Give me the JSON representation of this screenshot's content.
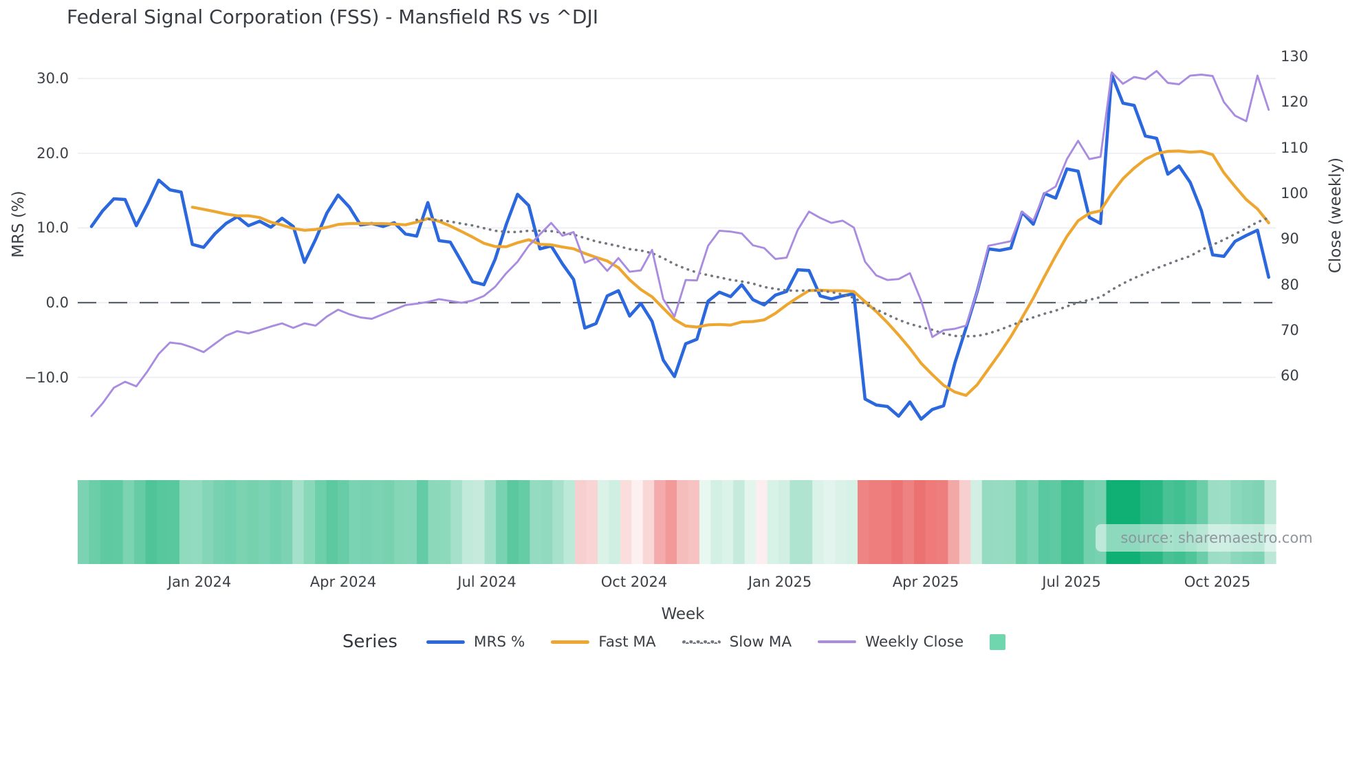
{
  "title": "Federal Signal Corporation (FSS) - Mansfield RS vs ^DJI",
  "source_note": "source: sharemaestro.com",
  "axes": {
    "left": {
      "label": "MRS (%)",
      "ticks": [
        "30.0",
        "20.0",
        "10.0",
        "0.0",
        "−10.0"
      ],
      "tick_values": [
        30,
        20,
        10,
        0,
        -10
      ]
    },
    "right": {
      "label": "Close (weekly)",
      "ticks": [
        "130",
        "120",
        "110",
        "100",
        "90",
        "80",
        "70",
        "60"
      ],
      "tick_values": [
        130,
        120,
        110,
        100,
        90,
        80,
        70,
        60
      ]
    },
    "x": {
      "label": "Week",
      "ticks": [
        "Jan 2024",
        "Apr 2024",
        "Jul 2024",
        "Oct 2024",
        "Jan 2025",
        "Apr 2025",
        "Jul 2025",
        "Oct 2025"
      ]
    }
  },
  "legend": {
    "title": "Series",
    "items": [
      {
        "label": "MRS %",
        "swatch": "line",
        "color": "#2b67dd"
      },
      {
        "label": "Fast MA",
        "swatch": "line",
        "color": "#eda62f"
      },
      {
        "label": "Slow MA",
        "swatch": "dotted",
        "color": "#72767e"
      },
      {
        "label": "Weekly Close",
        "swatch": "line",
        "color": "#a98ce0"
      },
      {
        "label": "",
        "swatch": "square",
        "color": "#6fd6ae"
      }
    ]
  },
  "colors": {
    "mrs": "#2b67dd",
    "fast_ma": "#eda62f",
    "slow_ma": "#72767e",
    "weekly_close": "#a98ce0",
    "zero_line": "#5c6068",
    "grid": "#eceef3",
    "heat_positive": "#10b075",
    "heat_negative": "#ec6e6e",
    "text": "#3b4046",
    "muted_text": "#8f959d"
  },
  "chart_data": {
    "type": "line",
    "x_unit": "week",
    "n_weeks": 106,
    "x_span_note": "weekly points from late Oct 2023 to mid Nov 2025",
    "x_tick_labels": [
      "Jan 2024",
      "Apr 2024",
      "Jul 2024",
      "Oct 2024",
      "Jan 2025",
      "Apr 2025",
      "Jul 2025",
      "Oct 2025"
    ],
    "x_tick_week_index": [
      9.63,
      22.6,
      35.57,
      48.54,
      61.51,
      74.48,
      87.45,
      100.42
    ],
    "left_axis": {
      "label": "MRS (%)",
      "ticks": [
        30,
        20,
        10,
        0,
        -10
      ],
      "zero_line_dashed": true
    },
    "right_axis": {
      "label": "Close (weekly)",
      "ticks": [
        130,
        120,
        110,
        100,
        90,
        80,
        70,
        60
      ]
    },
    "grid": true,
    "legend_position": "bottom-center",
    "series": [
      {
        "name": "MRS %",
        "axis": "left",
        "style": "solid",
        "color": "#2b67dd",
        "values": [
          10.2,
          12.3,
          13.9,
          13.8,
          10.3,
          13.2,
          16.4,
          15.1,
          14.8,
          7.8,
          7.4,
          9.2,
          10.6,
          11.5,
          10.3,
          10.9,
          10.1,
          11.3,
          10.2,
          5.4,
          8.5,
          12.0,
          14.4,
          12.8,
          10.4,
          10.6,
          10.2,
          10.7,
          9.2,
          8.9,
          13.4,
          8.3,
          8.1,
          5.5,
          2.8,
          2.4,
          5.8,
          10.5,
          14.5,
          13.0,
          7.2,
          7.6,
          5.2,
          3.1,
          -3.4,
          -2.8,
          0.9,
          1.6,
          -1.8,
          -0.1,
          -2.5,
          -7.7,
          -9.9,
          -5.5,
          -4.9,
          0.2,
          1.4,
          0.8,
          2.4,
          0.4,
          -0.3,
          1.0,
          1.5,
          4.4,
          4.3,
          0.9,
          0.5,
          0.9,
          1.2,
          -12.9,
          -13.7,
          -13.9,
          -15.2,
          -13.3,
          -15.6,
          -14.3,
          -13.8,
          -8.1,
          -3.4,
          1.5,
          7.2,
          7.0,
          7.3,
          12.1,
          10.5,
          14.6,
          14.0,
          17.9,
          17.6,
          11.4,
          10.6,
          30.5,
          26.7,
          26.4,
          22.3,
          22.0,
          17.2,
          18.3,
          16.1,
          12.3,
          6.4,
          6.2,
          8.2,
          9.0,
          9.7,
          3.4
        ]
      },
      {
        "name": "Fast MA",
        "axis": "left",
        "style": "solid",
        "color": "#eda62f",
        "derived": {
          "sma_of": "MRS %",
          "period": 10
        }
      },
      {
        "name": "Slow MA",
        "axis": "left",
        "style": "dotted",
        "color": "#72767e",
        "derived": {
          "sma_of": "MRS %",
          "period": 30
        }
      },
      {
        "name": "Weekly Close",
        "axis": "right",
        "style": "solid",
        "color": "#a98ce0",
        "values": [
          51.2,
          54.0,
          57.4,
          58.7,
          57.7,
          61.0,
          64.8,
          67.3,
          67.0,
          66.2,
          65.2,
          67.0,
          68.8,
          69.8,
          69.3,
          70.0,
          70.8,
          71.5,
          70.5,
          71.5,
          71.0,
          73.0,
          74.5,
          73.5,
          72.8,
          72.5,
          73.5,
          74.5,
          75.5,
          75.8,
          76.2,
          76.8,
          76.4,
          76.0,
          76.5,
          77.5,
          79.5,
          82.5,
          85.0,
          88.5,
          91.0,
          93.5,
          90.7,
          91.5,
          84.8,
          85.8,
          83.0,
          85.8,
          82.8,
          83.1,
          87.6,
          76.8,
          73.0,
          81.0,
          80.9,
          88.5,
          91.8,
          91.6,
          91.2,
          88.6,
          88.0,
          85.6,
          85.9,
          92.0,
          96.0,
          94.6,
          93.5,
          94.0,
          92.5,
          85.0,
          82.0,
          81.0,
          81.2,
          82.5,
          76.5,
          68.5,
          70.0,
          70.3,
          71.0,
          78.5,
          88.5,
          89.0,
          89.5,
          96.0,
          94.0,
          100.0,
          101.5,
          107.5,
          111.5,
          107.5,
          108.0,
          126.5,
          124.0,
          125.5,
          125.0,
          126.8,
          124.2,
          123.9,
          125.8,
          126.0,
          125.7,
          120.0,
          117.0,
          115.8,
          125.8,
          118.3
        ]
      }
    ],
    "heatmap_strip": {
      "encodes": "weekly MRS % sign and magnitude (green = positive, red = negative)",
      "source_series": "MRS %",
      "positive_color": "#10b075",
      "negative_color": "#ec6e6e"
    }
  }
}
